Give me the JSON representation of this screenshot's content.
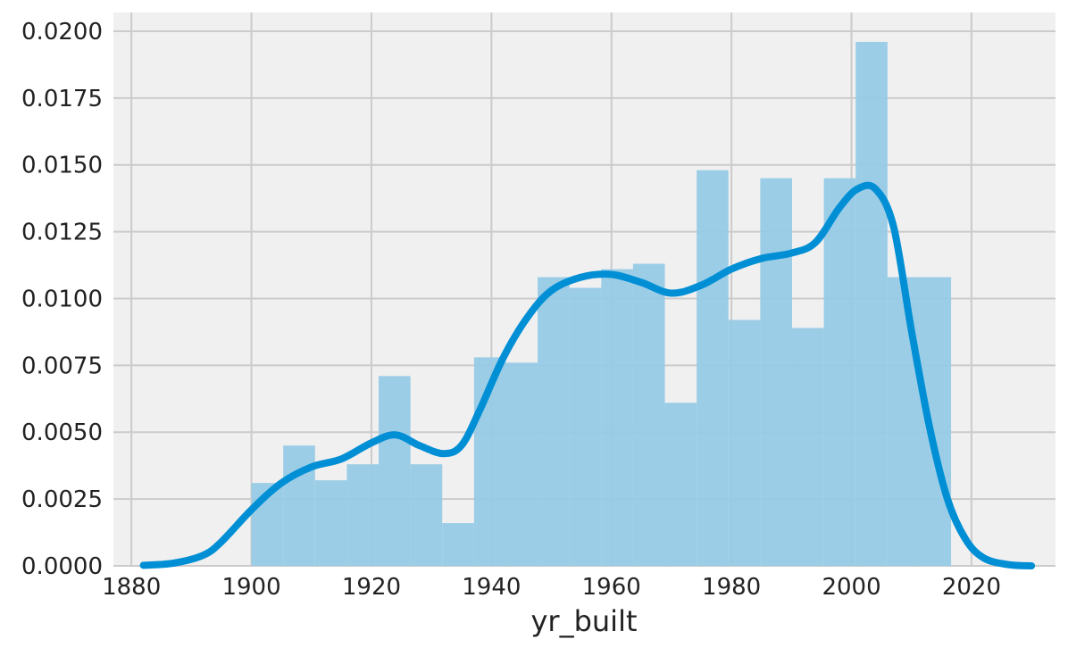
{
  "chart_data": {
    "type": "histogram_kde",
    "title": "",
    "xlabel": "yr_built",
    "ylabel": "",
    "xlim": [
      1877,
      2034
    ],
    "ylim": [
      0,
      0.0207
    ],
    "xticks": [
      1880,
      1900,
      1920,
      1940,
      1960,
      1980,
      2000,
      2020
    ],
    "xtick_labels": [
      "1880",
      "1900",
      "1920",
      "1940",
      "1960",
      "1980",
      "2000",
      "2020"
    ],
    "yticks": [
      0,
      0.0025,
      0.005,
      0.0075,
      0.01,
      0.0125,
      0.015,
      0.0175,
      0.02
    ],
    "ytick_labels": [
      "0.0000",
      "0.0025",
      "0.0050",
      "0.0075",
      "0.0100",
      "0.0125",
      "0.0150",
      "0.0175",
      "0.0200"
    ],
    "grid": true,
    "histogram": {
      "bin_width": 5.3,
      "bins": [
        {
          "x0": 1900.0,
          "value": 0.0031
        },
        {
          "x0": 1905.3,
          "value": 0.0045
        },
        {
          "x0": 1910.6,
          "value": 0.0032
        },
        {
          "x0": 1915.9,
          "value": 0.0038
        },
        {
          "x0": 1921.2,
          "value": 0.0071
        },
        {
          "x0": 1926.5,
          "value": 0.0038
        },
        {
          "x0": 1931.8,
          "value": 0.0016
        },
        {
          "x0": 1937.1,
          "value": 0.0078
        },
        {
          "x0": 1942.4,
          "value": 0.0076
        },
        {
          "x0": 1947.7,
          "value": 0.0108
        },
        {
          "x0": 1953.0,
          "value": 0.0104
        },
        {
          "x0": 1958.3,
          "value": 0.0111
        },
        {
          "x0": 1963.6,
          "value": 0.0113
        },
        {
          "x0": 1968.9,
          "value": 0.0061
        },
        {
          "x0": 1974.2,
          "value": 0.0148
        },
        {
          "x0": 1979.5,
          "value": 0.0092
        },
        {
          "x0": 1984.8,
          "value": 0.0145
        },
        {
          "x0": 1990.1,
          "value": 0.0089
        },
        {
          "x0": 1995.4,
          "value": 0.0145
        },
        {
          "x0": 2000.7,
          "value": 0.0196
        },
        {
          "x0": 2006.0,
          "value": 0.0108
        },
        {
          "x0": 2011.3,
          "value": 0.0108
        }
      ]
    },
    "kde": {
      "x": [
        1882,
        1887,
        1892,
        1895,
        1900,
        1905,
        1910,
        1915,
        1920,
        1924,
        1928,
        1932,
        1935,
        1938,
        1942,
        1946,
        1950,
        1955,
        1960,
        1965,
        1970,
        1975,
        1980,
        1985,
        1990,
        1994,
        1998,
        2001,
        2004,
        2007,
        2010,
        2013,
        2016,
        2019,
        2022,
        2026,
        2030
      ],
      "y": [
        2e-05,
        0.0001,
        0.0004,
        0.0009,
        0.0021,
        0.0031,
        0.0037,
        0.004,
        0.0046,
        0.0049,
        0.0045,
        0.0042,
        0.0045,
        0.0058,
        0.0078,
        0.0093,
        0.0103,
        0.0108,
        0.0109,
        0.0106,
        0.0102,
        0.0105,
        0.0111,
        0.0115,
        0.0117,
        0.0121,
        0.0134,
        0.0141,
        0.0141,
        0.0127,
        0.0088,
        0.0052,
        0.0025,
        0.001,
        0.0003,
        5e-05,
        0.0
      ]
    },
    "colors": {
      "bar": "#96cae6",
      "line": "#008fd5",
      "background": "#f0f0f0",
      "grid": "#cbcbcb",
      "text": "#222222"
    }
  }
}
